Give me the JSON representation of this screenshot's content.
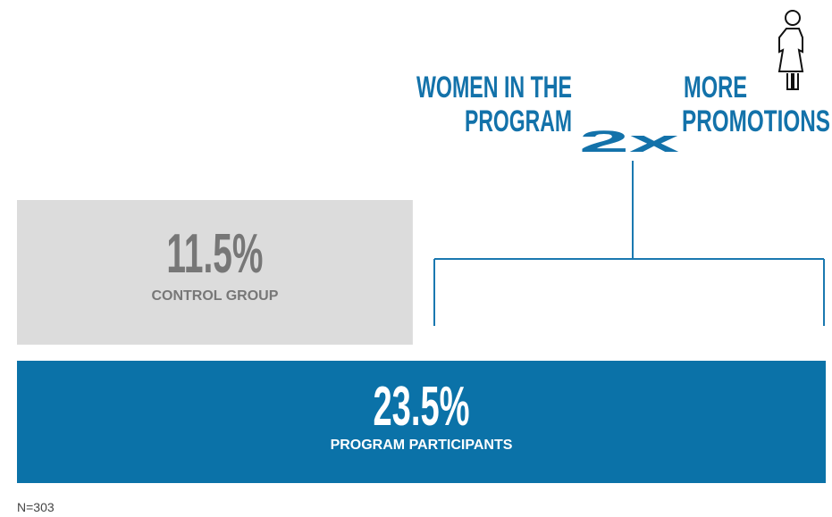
{
  "chart_data": {
    "type": "bar",
    "orientation": "horizontal",
    "headline": {
      "left": [
        "WOMEN IN THE",
        "PROGRAM"
      ],
      "multiplier": "2x",
      "right": [
        "MORE",
        "PROMOTIONS"
      ]
    },
    "categories": [
      "CONTROL GROUP",
      "PROGRAM PARTICIPANTS"
    ],
    "values": [
      11.5,
      23.5
    ],
    "value_labels": [
      "11.5%",
      "23.5%"
    ],
    "colors": [
      "#dcdcdc",
      "#0b72a8"
    ],
    "note": "N=303"
  }
}
